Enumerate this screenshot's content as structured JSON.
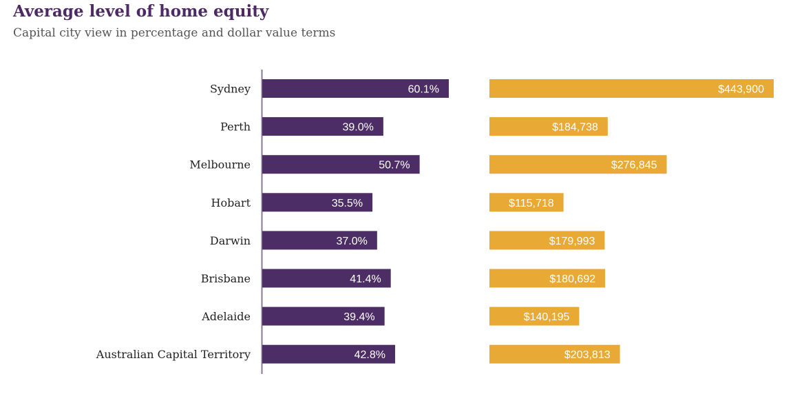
{
  "title": "Average level of home equity",
  "subtitle": "Capital city view in percentage and dollar value terms",
  "colors": {
    "percent_bar": "#4d2d66",
    "dollar_bar": "#e9aa35",
    "axis": "#8a7a96"
  },
  "chart_data": [
    {
      "type": "bar",
      "orientation": "horizontal",
      "categories": [
        "Sydney",
        "Perth",
        "Melbourne",
        "Hobart",
        "Darwin",
        "Brisbane",
        "Adelaide",
        "Australian Capital Territory"
      ],
      "values": [
        60.1,
        39.0,
        50.7,
        35.5,
        37.0,
        41.4,
        39.4,
        42.8
      ],
      "value_labels": [
        "60.1%",
        "39.0%",
        "50.7%",
        "35.5%",
        "37.0%",
        "41.4%",
        "39.4%",
        "42.8%"
      ],
      "xlim": [
        0,
        60.1
      ]
    },
    {
      "type": "bar",
      "orientation": "horizontal",
      "categories": [
        "Sydney",
        "Perth",
        "Melbourne",
        "Hobart",
        "Darwin",
        "Brisbane",
        "Adelaide",
        "Australian Capital Territory"
      ],
      "values": [
        443900,
        184738,
        276845,
        115718,
        179993,
        180692,
        140195,
        203813
      ],
      "value_labels": [
        "$443,900",
        "$184,738",
        "$276,845",
        "$115,718",
        "$179,993",
        "$180,692",
        "$140,195",
        "$203,813"
      ],
      "xlim": [
        0,
        443900
      ]
    }
  ]
}
